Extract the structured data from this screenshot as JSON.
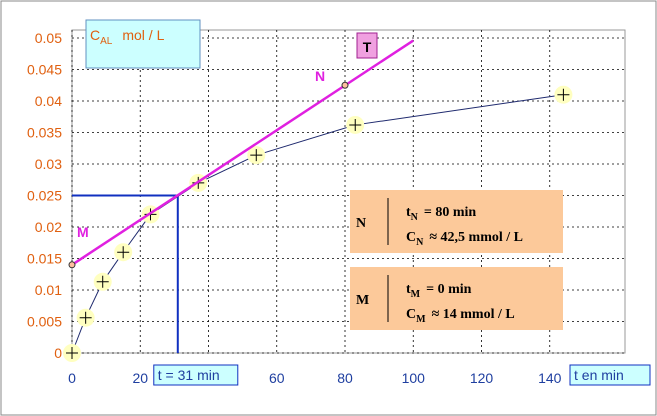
{
  "chart_data": {
    "type": "scatter",
    "y_label": {
      "sym": "C",
      "sub": "AL",
      "rest": "mol / L"
    },
    "x_label": "t en min",
    "xlim": [
      0,
      160
    ],
    "ylim": [
      0,
      0.05
    ],
    "xticks": [
      0,
      20,
      40,
      60,
      80,
      100,
      120,
      140
    ],
    "yticks": [
      0,
      0.005,
      0.01,
      0.015,
      0.02,
      0.025,
      0.03,
      0.035,
      0.04,
      0.045,
      0.05
    ],
    "grid": true,
    "series": [
      {
        "color": "#1f2a6e",
        "marker_color": "#ffffc0",
        "x": [
          0,
          4,
          9,
          15,
          23,
          37,
          54,
          83,
          144
        ],
        "values": [
          0,
          0.0056,
          0.0113,
          0.016,
          0.022,
          0.027,
          0.0314,
          0.0362,
          0.041
        ]
      },
      {
        "name": "T",
        "color": "#e020e0",
        "x": [
          0,
          100
        ],
        "values": [
          0.014,
          0.0496
        ]
      }
    ],
    "points": [
      {
        "label": "N",
        "x": 80,
        "y": 0.0425
      },
      {
        "label": "M",
        "x": 0,
        "y": 0.014
      }
    ],
    "reading": {
      "x": 31,
      "y": 0.025,
      "label": "t = 31 min",
      "color": "#1030c0"
    },
    "boxes": [
      {
        "letter": "N",
        "rows": [
          {
            "sym": "t",
            "sub": "N",
            "rest": "= 80  min"
          },
          {
            "sym": "C",
            "sub": "N",
            "rest": "≈ 42,5 mmol / L"
          }
        ]
      },
      {
        "letter": "M",
        "rows": [
          {
            "sym": "t",
            "sub": "M",
            "rest": "= 0   min"
          },
          {
            "sym": "C",
            "sub": "M",
            "rest": "≈ 14 mmol / L"
          }
        ]
      }
    ]
  }
}
